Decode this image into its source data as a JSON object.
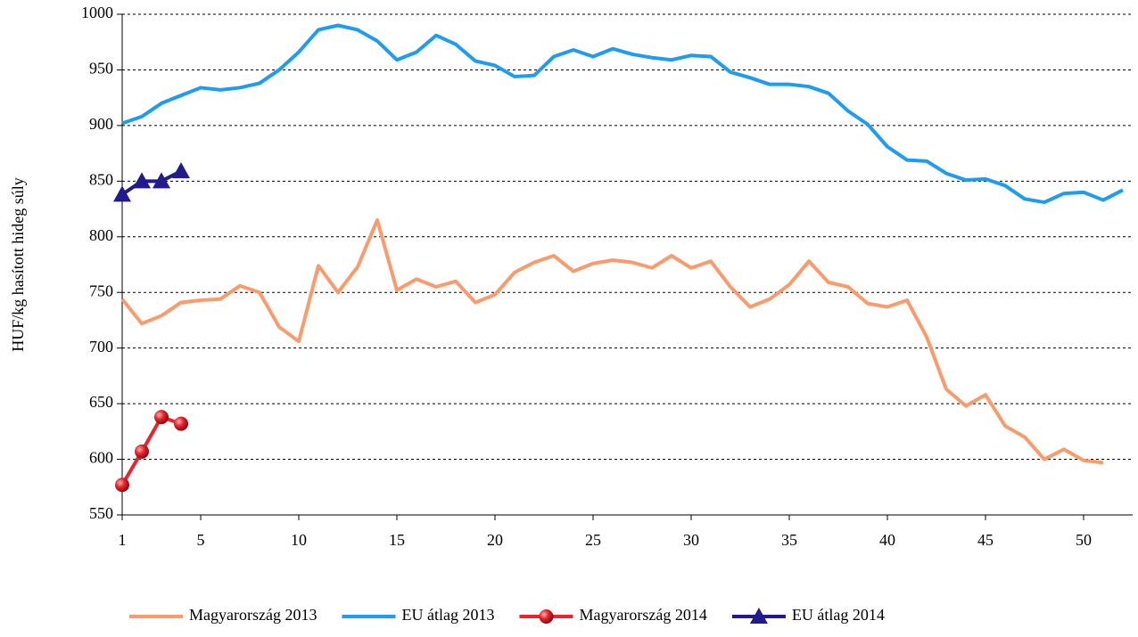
{
  "chart_data": {
    "type": "line",
    "y_label": "HUF/kg hasított hideg súly",
    "x": [
      1,
      2,
      3,
      4,
      5,
      6,
      7,
      8,
      9,
      10,
      11,
      12,
      13,
      14,
      15,
      16,
      17,
      18,
      19,
      20,
      21,
      22,
      23,
      24,
      25,
      26,
      27,
      28,
      29,
      30,
      31,
      32,
      33,
      34,
      35,
      36,
      37,
      38,
      39,
      40,
      41,
      42,
      43,
      44,
      45,
      46,
      47,
      48,
      49,
      50,
      51,
      52
    ],
    "series": [
      {
        "name": "Magyarország 2013",
        "color": "#f99b6c",
        "marker": "none",
        "values": [
          744,
          722,
          729,
          741,
          743,
          744,
          756,
          750,
          719,
          706,
          774,
          750,
          773,
          815,
          752,
          762,
          755,
          760,
          741,
          748,
          768,
          777,
          783,
          769,
          776,
          779,
          777,
          772,
          783,
          772,
          778,
          755,
          737,
          744,
          757,
          778,
          759,
          755,
          740,
          737,
          743,
          710,
          663,
          648,
          658,
          630,
          620,
          600,
          609,
          599,
          597,
          null
        ]
      },
      {
        "name": "EU átlag 2013",
        "color": "#1e9cf0",
        "marker": "none",
        "values": [
          902,
          908,
          920,
          927,
          934,
          932,
          934,
          938,
          950,
          966,
          986,
          990,
          986,
          976,
          959,
          966,
          981,
          973,
          958,
          954,
          944,
          945,
          962,
          968,
          962,
          969,
          964,
          961,
          959,
          963,
          962,
          948,
          943,
          937,
          937,
          935,
          929,
          913,
          901,
          881,
          869,
          868,
          857,
          851,
          852,
          846,
          834,
          831,
          839,
          840,
          833,
          842
        ]
      },
      {
        "name": "Magyarország 2014",
        "color": "#e8242c",
        "marker": "circle",
        "values": [
          577,
          607,
          638,
          632,
          null,
          null,
          null,
          null,
          null,
          null,
          null,
          null,
          null,
          null,
          null,
          null,
          null,
          null,
          null,
          null,
          null,
          null,
          null,
          null,
          null,
          null,
          null,
          null,
          null,
          null,
          null,
          null,
          null,
          null,
          null,
          null,
          null,
          null,
          null,
          null,
          null,
          null,
          null,
          null,
          null,
          null,
          null,
          null,
          null,
          null,
          null,
          null
        ]
      },
      {
        "name": "EU átlag 2014",
        "color": "#231a8e",
        "marker": "triangle",
        "values": [
          838,
          850,
          850,
          859,
          null,
          null,
          null,
          null,
          null,
          null,
          null,
          null,
          null,
          null,
          null,
          null,
          null,
          null,
          null,
          null,
          null,
          null,
          null,
          null,
          null,
          null,
          null,
          null,
          null,
          null,
          null,
          null,
          null,
          null,
          null,
          null,
          null,
          null,
          null,
          null,
          null,
          null,
          null,
          null,
          null,
          null,
          null,
          null,
          null,
          null,
          null,
          null
        ]
      }
    ],
    "xlim": [
      1,
      52.5
    ],
    "xticks": [
      1,
      5,
      10,
      15,
      20,
      25,
      30,
      35,
      40,
      45,
      50
    ],
    "ylim": [
      550,
      1000
    ],
    "yticks": [
      550,
      600,
      650,
      700,
      750,
      800,
      850,
      900,
      950,
      1000
    ],
    "grid": true,
    "legend": "bottom"
  }
}
